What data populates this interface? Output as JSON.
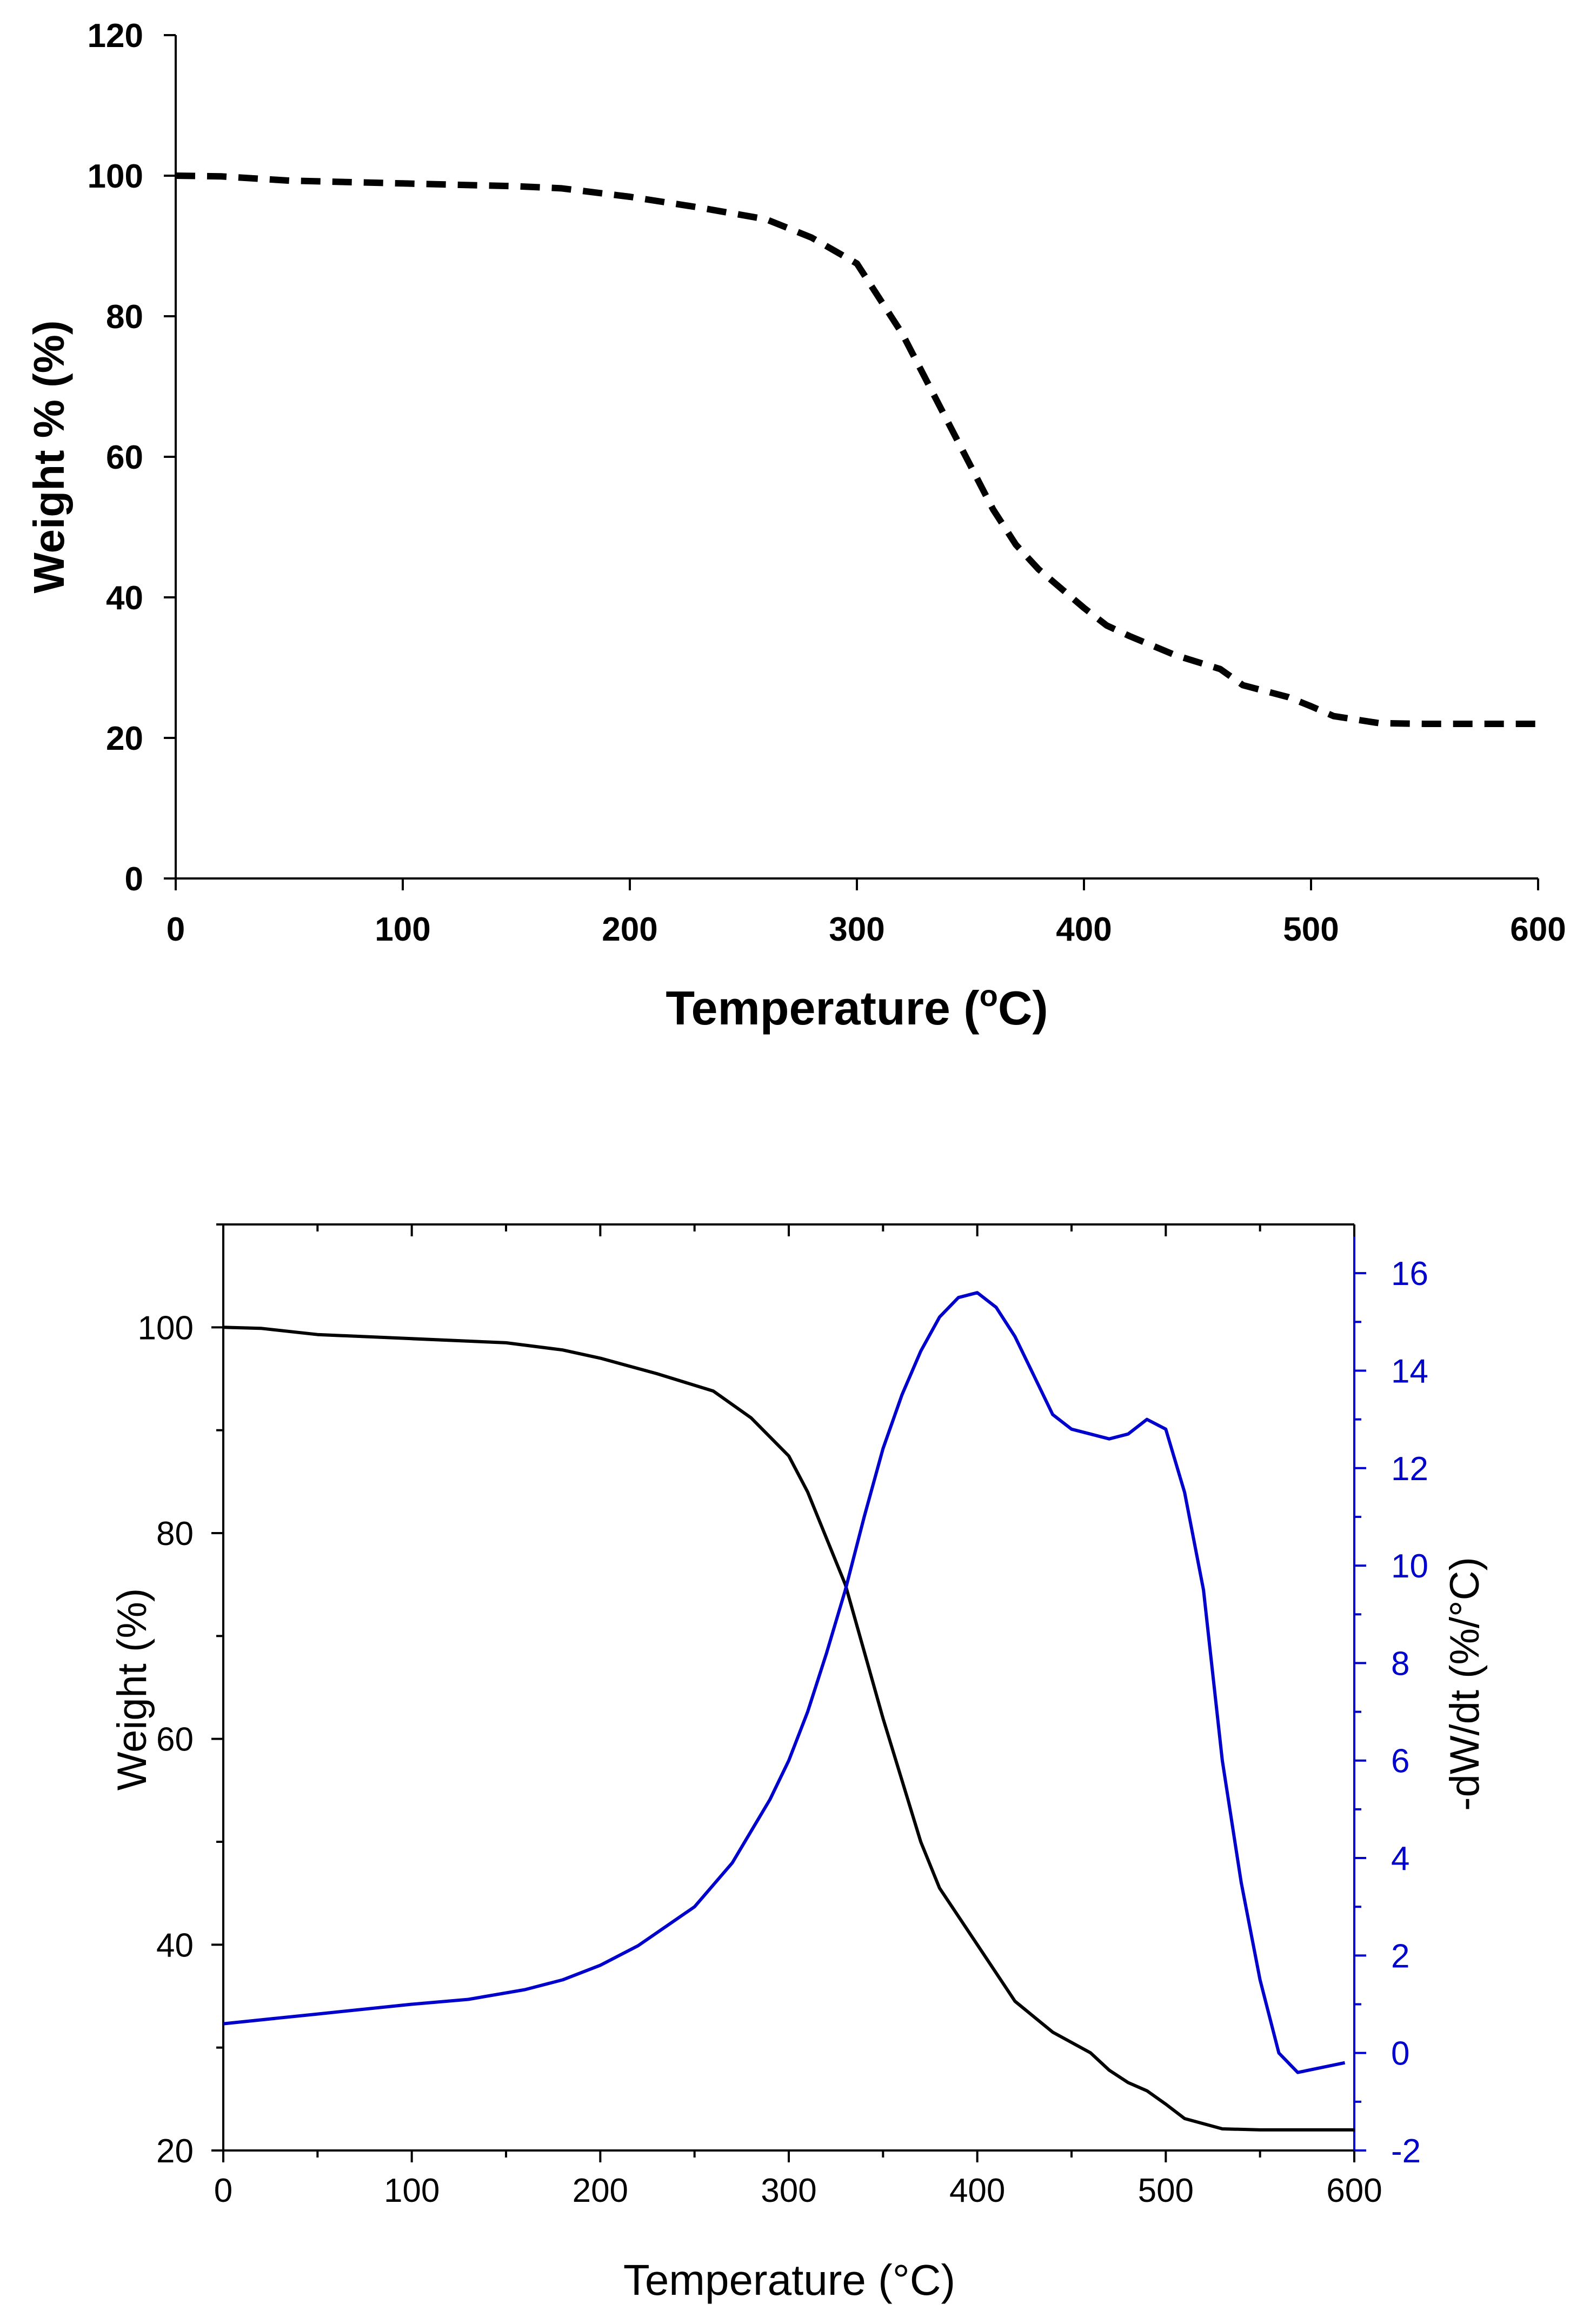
{
  "chart_data": [
    {
      "type": "line",
      "title": "",
      "xlabel": "Temperature (oC)",
      "xlabel_main": "Temperature (",
      "xlabel_sup": "o",
      "xlabel_tail": "C)",
      "ylabel": "Weight % (%)",
      "xlim": [
        0,
        600
      ],
      "ylim": [
        0,
        120
      ],
      "xticks": [
        0,
        100,
        200,
        300,
        400,
        500,
        600
      ],
      "yticks": [
        0,
        20,
        40,
        60,
        80,
        100,
        120
      ],
      "grid": false,
      "series": [
        {
          "name": "Weight %",
          "style": "dashed",
          "color": "#000000",
          "x": [
            0,
            20,
            50,
            100,
            150,
            170,
            200,
            230,
            260,
            280,
            300,
            320,
            340,
            360,
            370,
            380,
            400,
            410,
            420,
            440,
            460,
            470,
            490,
            500,
            510,
            530,
            550,
            570,
            600
          ],
          "y": [
            100,
            99.9,
            99.3,
            98.9,
            98.5,
            98.2,
            97,
            95.5,
            93.8,
            91.2,
            87.5,
            77.5,
            65,
            52.5,
            47.5,
            44,
            38.5,
            36,
            34.5,
            31.8,
            29.8,
            27.5,
            25.8,
            24.5,
            23.1,
            22.1,
            22,
            22,
            22
          ]
        }
      ]
    },
    {
      "type": "line",
      "title": "",
      "xlabel": "Temperature (°C)",
      "ylabel": "Weight (%)",
      "ylabel_right": "-dW/dt (%/°C)",
      "xlim": [
        0,
        600
      ],
      "ylim": [
        20,
        110
      ],
      "ylim_right": [
        -2,
        17
      ],
      "xticks": [
        0,
        100,
        200,
        300,
        400,
        500,
        600
      ],
      "yticks": [
        20,
        40,
        60,
        80,
        100
      ],
      "yticks_right": [
        -2,
        0,
        2,
        4,
        6,
        8,
        10,
        12,
        14,
        16
      ],
      "grid": false,
      "series": [
        {
          "name": "Weight",
          "axis": "left",
          "color": "#000000",
          "x": [
            0,
            20,
            50,
            100,
            150,
            180,
            200,
            230,
            260,
            280,
            300,
            310,
            320,
            330,
            340,
            350,
            360,
            370,
            380,
            400,
            420,
            440,
            460,
            470,
            480,
            490,
            500,
            510,
            530,
            550,
            600
          ],
          "y": [
            100,
            99.9,
            99.3,
            98.9,
            98.5,
            97.8,
            97,
            95.5,
            93.8,
            91.2,
            87.5,
            84,
            79.5,
            75,
            68.5,
            62,
            56,
            50,
            45.5,
            40,
            34.5,
            31.5,
            29.5,
            27.8,
            26.6,
            25.8,
            24.5,
            23.1,
            22.1,
            22,
            22
          ]
        },
        {
          "name": "-dW/dt",
          "axis": "right",
          "color": "#0000cc",
          "x": [
            0,
            50,
            100,
            130,
            160,
            180,
            200,
            220,
            250,
            270,
            290,
            300,
            310,
            320,
            330,
            340,
            350,
            360,
            370,
            380,
            390,
            400,
            410,
            420,
            430,
            440,
            450,
            460,
            470,
            480,
            490,
            500,
            510,
            520,
            530,
            540,
            550,
            560,
            570,
            595
          ],
          "y": [
            0.6,
            0.8,
            1.0,
            1.1,
            1.3,
            1.5,
            1.8,
            2.2,
            3.0,
            3.9,
            5.2,
            6.0,
            7.0,
            8.2,
            9.5,
            11.0,
            12.4,
            13.5,
            14.4,
            15.1,
            15.5,
            15.6,
            15.3,
            14.7,
            13.9,
            13.1,
            12.8,
            12.7,
            12.6,
            12.7,
            13.0,
            12.8,
            11.5,
            9.5,
            6.0,
            3.5,
            1.5,
            0.0,
            -0.4,
            -0.2
          ]
        }
      ]
    }
  ]
}
